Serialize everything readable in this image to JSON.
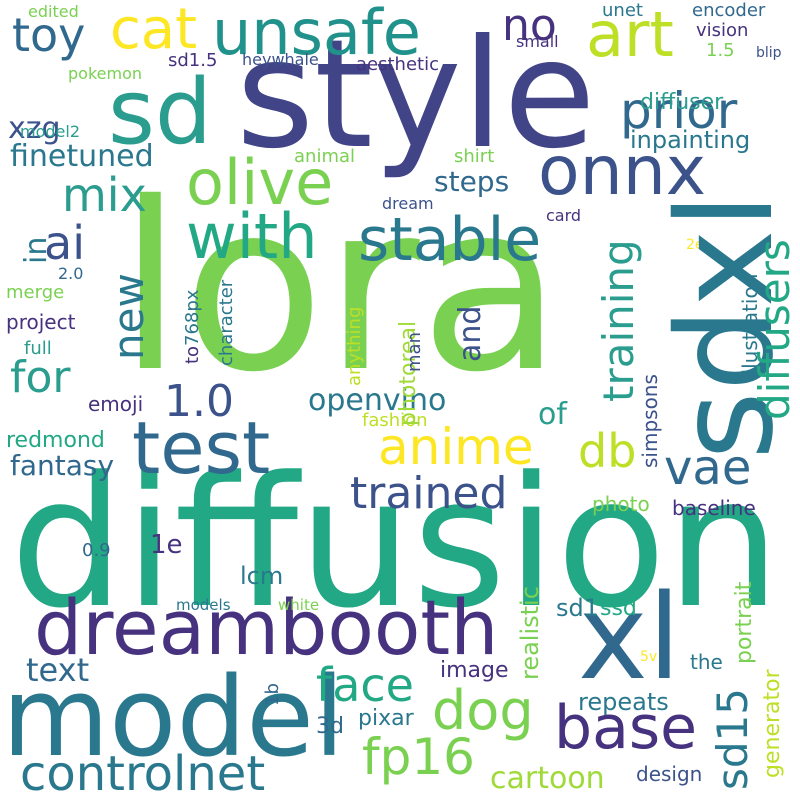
{
  "words": [
    {
      "key": "lora",
      "text": "lora",
      "color": "#7ad151"
    },
    {
      "key": "diffusion",
      "text": "diffusion",
      "color": "#22a884"
    },
    {
      "key": "style",
      "text": "style",
      "color": "#414487"
    },
    {
      "key": "sdxl",
      "text": "sdxl",
      "color": "#2a788e"
    },
    {
      "key": "model",
      "text": "model",
      "color": "#2a788e"
    },
    {
      "key": "xl",
      "text": "xl",
      "color": "#31688e"
    },
    {
      "key": "sd",
      "text": "sd",
      "color": "#2a9d8f"
    },
    {
      "key": "dreambooth",
      "text": "dreambooth",
      "color": "#46327e"
    },
    {
      "key": "test",
      "text": "test",
      "color": "#31688e"
    },
    {
      "key": "unsafe",
      "text": "unsafe",
      "color": "#21918c"
    },
    {
      "key": "cat",
      "text": "cat",
      "color": "#fde725"
    },
    {
      "key": "art",
      "text": "art",
      "color": "#bddf26"
    },
    {
      "key": "olive",
      "text": "olive",
      "color": "#7ad151"
    },
    {
      "key": "with",
      "text": "with",
      "color": "#22a884"
    },
    {
      "key": "stable",
      "text": "stable",
      "color": "#2a788e"
    },
    {
      "key": "onnx",
      "text": "onnx",
      "color": "#3b528b"
    },
    {
      "key": "controlnet",
      "text": "controlnet",
      "color": "#2a788e"
    },
    {
      "key": "base",
      "text": "base",
      "color": "#46327e"
    },
    {
      "key": "anime",
      "text": "anime",
      "color": "#fde725"
    },
    {
      "key": "trained",
      "text": "trained",
      "color": "#3b528b"
    },
    {
      "key": "dog",
      "text": "dog",
      "color": "#7ad151"
    },
    {
      "key": "face",
      "text": "face",
      "color": "#22a884"
    },
    {
      "key": "fp16",
      "text": "fp16",
      "color": "#7ad151"
    },
    {
      "key": "prior",
      "text": "prior",
      "color": "#31688e"
    },
    {
      "key": "toy",
      "text": "toy",
      "color": "#31688e"
    },
    {
      "key": "mix",
      "text": "mix",
      "color": "#2a9d8f"
    },
    {
      "key": "ai",
      "text": "ai",
      "color": "#3b528b"
    },
    {
      "key": "new",
      "text": "new",
      "color": "#2a788e"
    },
    {
      "key": "for",
      "text": "for",
      "color": "#2a9d8f"
    },
    {
      "key": "1.0",
      "text": "1.0",
      "color": "#3b528b"
    },
    {
      "key": "vae",
      "text": "vae",
      "color": "#31688e"
    },
    {
      "key": "db",
      "text": "db",
      "color": "#bddf26"
    },
    {
      "key": "no",
      "text": "no",
      "color": "#46327e"
    },
    {
      "key": "training",
      "text": "training",
      "color": "#2a9d8f"
    },
    {
      "key": "diffusers",
      "text": "diffusers",
      "color": "#22a884"
    },
    {
      "key": "sd15",
      "text": "sd15",
      "color": "#2a788e"
    },
    {
      "key": "cartoon",
      "text": "cartoon",
      "color": "#a0da39"
    },
    {
      "key": "text",
      "text": "text",
      "color": "#31688e"
    },
    {
      "key": "openvino",
      "text": "openvino",
      "color": "#2a788e"
    },
    {
      "key": "fantasy",
      "text": "fantasy",
      "color": "#31688e"
    },
    {
      "key": "xzg",
      "text": "xzg",
      "color": "#3b528b"
    },
    {
      "key": "finetuned",
      "text": "finetuned",
      "color": "#2a788e"
    },
    {
      "key": "steps",
      "text": "steps",
      "color": "#31688e"
    },
    {
      "key": "inpainting",
      "text": "inpainting",
      "color": "#2a788e"
    },
    {
      "key": "diffuser",
      "text": "diffuser",
      "color": "#2a9d8f"
    },
    {
      "key": "and",
      "text": "and",
      "color": "#3b528b"
    },
    {
      "key": "of",
      "text": "of",
      "color": "#2a9d8f"
    },
    {
      "key": "in",
      "text": "in",
      "color": "#2a788e"
    },
    {
      "key": "redmond",
      "text": "redmond",
      "color": "#22a884"
    },
    {
      "key": "emoji",
      "text": "emoji",
      "color": "#46327e"
    },
    {
      "key": "1e",
      "text": "1e",
      "color": "#46327e"
    },
    {
      "key": "lcm",
      "text": "lcm",
      "color": "#2a788e"
    },
    {
      "key": "image",
      "text": "image",
      "color": "#46327e"
    },
    {
      "key": "repeats",
      "text": "repeats",
      "color": "#2a788e"
    },
    {
      "key": "design",
      "text": "design",
      "color": "#3b528b"
    },
    {
      "key": "pixar",
      "text": "pixar",
      "color": "#2a788e"
    },
    {
      "key": "3d",
      "text": "3d",
      "color": "#31688e"
    },
    {
      "key": "baseline",
      "text": "baseline",
      "color": "#46327e"
    },
    {
      "key": "generator",
      "text": "generator",
      "color": "#bddf26"
    },
    {
      "key": "portrait",
      "text": "portrait",
      "color": "#7ad151"
    },
    {
      "key": "realistic",
      "text": "realistic",
      "color": "#7ad151"
    },
    {
      "key": "sd1",
      "text": "sd1",
      "color": "#2a788e"
    },
    {
      "key": "ssd",
      "text": "ssd",
      "color": "#22a884"
    },
    {
      "key": "the",
      "text": "the",
      "color": "#2a788e"
    },
    {
      "key": "photoreal",
      "text": "photoreal",
      "color": "#a0da39"
    },
    {
      "key": "simpsons",
      "text": "simpsons",
      "color": "#3b528b"
    },
    {
      "key": "illustration",
      "text": "illustration",
      "color": "#2a788e"
    },
    {
      "key": "photo",
      "text": "photo",
      "color": "#7ad151"
    },
    {
      "key": "fashion",
      "text": "fashion",
      "color": "#bddf26"
    },
    {
      "key": "man",
      "text": "man",
      "color": "#3b528b"
    },
    {
      "key": "anything",
      "text": "anything",
      "color": "#bddf26"
    },
    {
      "key": "character",
      "text": "character",
      "color": "#2a788e"
    },
    {
      "key": "to",
      "text": "to",
      "color": "#46327e"
    },
    {
      "key": "768px",
      "text": "768px",
      "color": "#2a788e"
    },
    {
      "key": "project",
      "text": "project",
      "color": "#46327e"
    },
    {
      "key": "full",
      "text": "full",
      "color": "#2a9d8f"
    },
    {
      "key": "merge",
      "text": "merge",
      "color": "#7ad151"
    },
    {
      "key": "2.0",
      "text": "2.0",
      "color": "#31688e"
    },
    {
      "key": "0.9",
      "text": "0.9",
      "color": "#31688e"
    },
    {
      "key": "1b",
      "text": "1b",
      "color": "#31688e"
    },
    {
      "key": "models",
      "text": "models",
      "color": "#2a788e"
    },
    {
      "key": "white",
      "text": "white",
      "color": "#7ad151"
    },
    {
      "key": "5v",
      "text": "5v",
      "color": "#fde725"
    },
    {
      "key": "2e",
      "text": "2e",
      "color": "#fde725"
    },
    {
      "key": "card",
      "text": "card",
      "color": "#46327e"
    },
    {
      "key": "dream",
      "text": "dream",
      "color": "#3b528b"
    },
    {
      "key": "shirt",
      "text": "shirt",
      "color": "#7ad151"
    },
    {
      "key": "animal",
      "text": "animal",
      "color": "#7ad151"
    },
    {
      "key": "model2",
      "text": "model2",
      "color": "#2a9d8f"
    },
    {
      "key": "pokemon",
      "text": "pokemon",
      "color": "#7ad151"
    },
    {
      "key": "sd1.5",
      "text": "sd1.5",
      "color": "#46327e"
    },
    {
      "key": "heywhale",
      "text": "heywhale",
      "color": "#3b528b"
    },
    {
      "key": "aesthetic",
      "text": "aesthetic",
      "color": "#46327e"
    },
    {
      "key": "small",
      "text": "small",
      "color": "#46327e"
    },
    {
      "key": "unet",
      "text": "unet",
      "color": "#2a788e"
    },
    {
      "key": "vision",
      "text": "vision",
      "color": "#46327e"
    },
    {
      "key": "1.5",
      "text": "1.5",
      "color": "#7ad151"
    },
    {
      "key": "encoder",
      "text": "encoder",
      "color": "#31688e"
    },
    {
      "key": "blip",
      "text": "blip",
      "color": "#3b528b"
    },
    {
      "key": "edited",
      "text": "edited",
      "color": "#7ad151"
    }
  ]
}
